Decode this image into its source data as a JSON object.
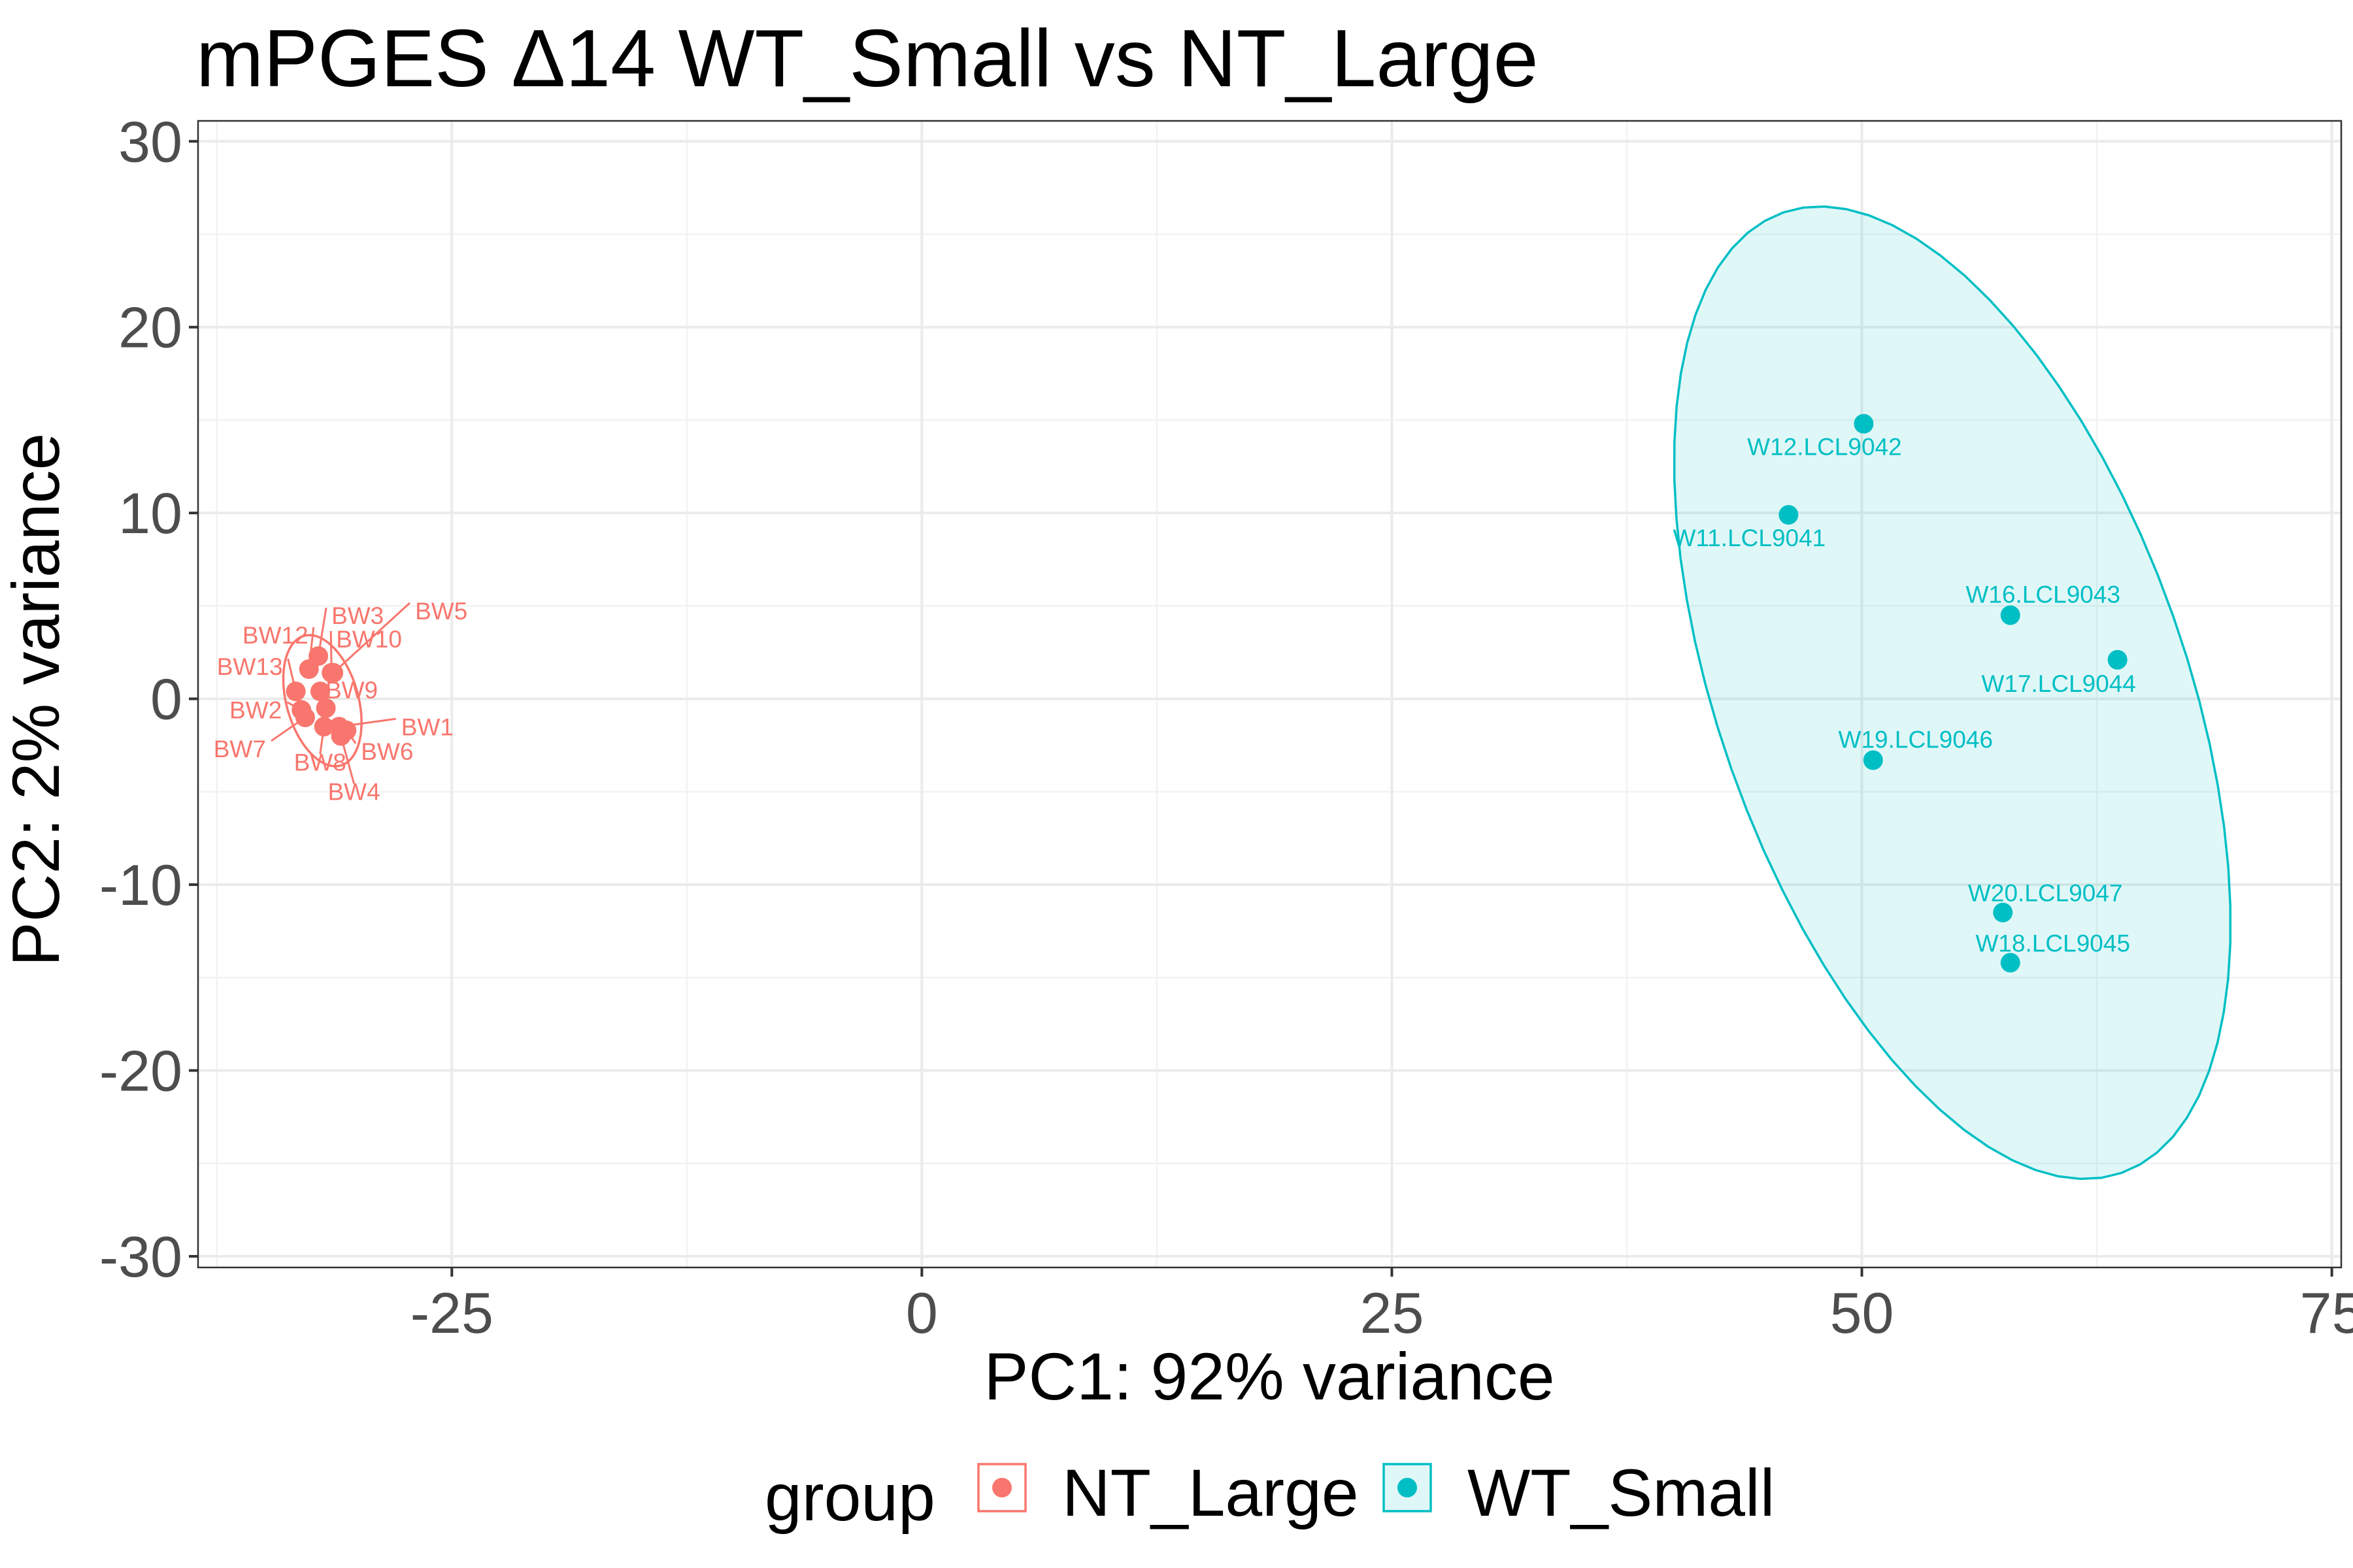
{
  "chart_data": {
    "type": "scatter",
    "title": "mPGES Δ14 WT_Small vs NT_Large",
    "xlabel": "PC1: 92% variance",
    "ylabel": "PC2: 2% variance",
    "xlim": [
      -38.5,
      75.5
    ],
    "ylim": [
      -30.6,
      31.1
    ],
    "x_ticks": [
      -25,
      0,
      25,
      50,
      75
    ],
    "x_tick_labels": [
      "-25",
      "0",
      "25",
      "50",
      "75"
    ],
    "y_ticks": [
      -30,
      -20,
      -10,
      0,
      10,
      20,
      30
    ],
    "y_tick_labels": [
      "-30",
      "-20",
      "-10",
      "0",
      "10",
      "20",
      "30"
    ],
    "grid": true,
    "legend_position": "bottom",
    "legend_title": "group",
    "colors": {
      "NT_Large": "#f8766d",
      "WT_Small": "#00bfc4"
    },
    "series": [
      {
        "name": "NT_Large",
        "points": [
          {
            "label": "BW1",
            "x": -31.0,
            "y": -1.5
          },
          {
            "label": "BW2",
            "x": -33.0,
            "y": -0.6
          },
          {
            "label": "BW3",
            "x": -32.1,
            "y": 2.3
          },
          {
            "label": "BW4",
            "x": -30.9,
            "y": -2.0
          },
          {
            "label": "BW5",
            "x": -31.3,
            "y": 1.4
          },
          {
            "label": "BW6",
            "x": -30.6,
            "y": -1.7
          },
          {
            "label": "BW7",
            "x": -32.8,
            "y": -1.0
          },
          {
            "label": "BW8",
            "x": -31.8,
            "y": -1.5
          },
          {
            "label": "BW9",
            "x": -32.0,
            "y": 0.4
          },
          {
            "label": "BW10",
            "x": -31.4,
            "y": 1.4
          },
          {
            "label": "BW12",
            "x": -32.6,
            "y": 1.6
          },
          {
            "label": "BW13",
            "x": -33.3,
            "y": 0.4
          },
          {
            "label": "",
            "x": -31.7,
            "y": -0.5
          }
        ]
      },
      {
        "name": "WT_Small",
        "points": [
          {
            "label": "W11.LCL9041",
            "x": 46.1,
            "y": 9.9
          },
          {
            "label": "W12.LCL9042",
            "x": 50.1,
            "y": 14.8
          },
          {
            "label": "W16.LCL9043",
            "x": 57.9,
            "y": 4.5
          },
          {
            "label": "W17.LCL9044",
            "x": 63.6,
            "y": 2.1
          },
          {
            "label": "W18.LCL9045",
            "x": 57.9,
            "y": -14.2
          },
          {
            "label": "W19.LCL9046",
            "x": 50.6,
            "y": -3.3
          },
          {
            "label": "W20.LCL9047",
            "x": 57.5,
            "y": -11.5
          }
        ]
      }
    ]
  }
}
